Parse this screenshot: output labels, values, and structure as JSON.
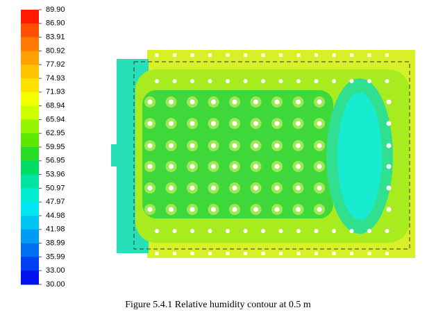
{
  "chart_data": {
    "type": "contour",
    "caption": "Figure 5.4.1 Relative humidity contour at 0.5 m",
    "colorbar_ticks": [
      {
        "value": 89.9,
        "label": "89.90"
      },
      {
        "value": 86.9,
        "label": "86.90"
      },
      83.91,
      80.92,
      77.92,
      74.93,
      71.93,
      68.94,
      65.94,
      62.95,
      59.95,
      56.95,
      53.96,
      50.97,
      47.97,
      44.98,
      41.98,
      38.99,
      35.99,
      {
        "value": 33,
        "label": "33.00"
      },
      {
        "value": 30,
        "label": "30.00"
      }
    ],
    "colors": [
      "#ff1a00",
      "#ff5000",
      "#ff7a00",
      "#ffa000",
      "#ffc400",
      "#ffe000",
      "#f4ff00",
      "#ccff00",
      "#96f500",
      "#5ee800",
      "#28dc28",
      "#00dc64",
      "#00e4a0",
      "#00ecd0",
      "#00e6f2",
      "#00c4f2",
      "#009cf2",
      "#0070f2",
      "#0040f2",
      "#0010f0"
    ]
  }
}
